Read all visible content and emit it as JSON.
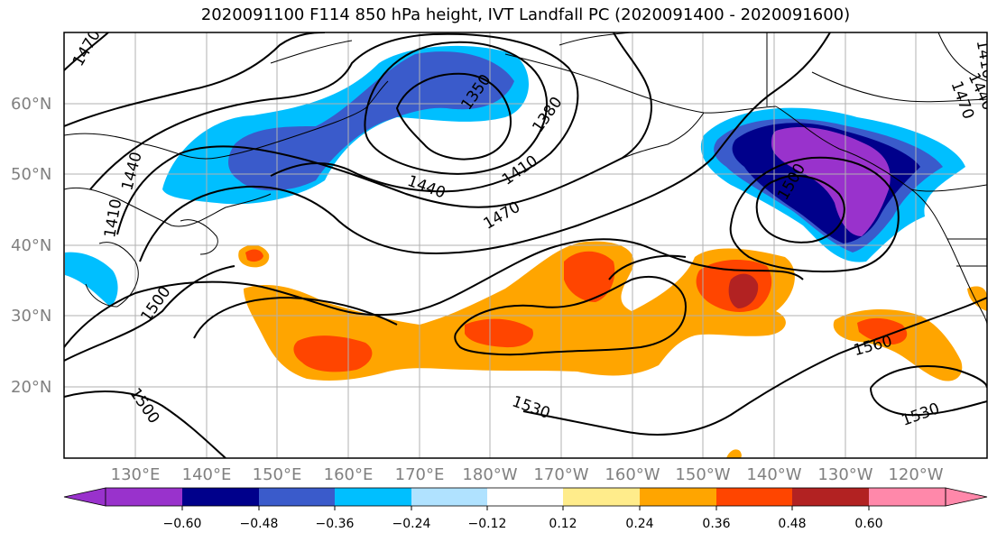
{
  "title": "2020091100 F114 850 hPa height, IVT Landfall PC (2020091400 - 2020091600)",
  "lat_labels": [
    "60°N",
    "50°N",
    "40°N",
    "30°N",
    "20°N"
  ],
  "lon_labels": [
    "130°E",
    "140°E",
    "150°E",
    "160°E",
    "170°E",
    "180°W",
    "170°W",
    "160°W",
    "150°W",
    "140°W",
    "130°W",
    "120°W"
  ],
  "colorbar": {
    "ticks": [
      "−0.60",
      "−0.48",
      "−0.36",
      "−0.24",
      "−0.12",
      "0.12",
      "0.24",
      "0.36",
      "0.48",
      "0.60"
    ],
    "colors": [
      "#9932CC",
      "#00008B",
      "#3A5BCB",
      "#00BFFF",
      "#B0E2FF",
      "#FFFFFF",
      "#FFEC8B",
      "#FFA500",
      "#FF4500",
      "#B22222",
      "#FF88AA"
    ]
  },
  "contour_labels": [
    "1470",
    "1350",
    "1380",
    "1440",
    "1410",
    "1410",
    "1440",
    "1470",
    "1500",
    "1500",
    "1560",
    "1530",
    "1530",
    "1500",
    "1410",
    "1440",
    "1470"
  ],
  "colors": {
    "contour": "#000000",
    "grid": "#b0b0b0",
    "coast": "#000000"
  }
}
